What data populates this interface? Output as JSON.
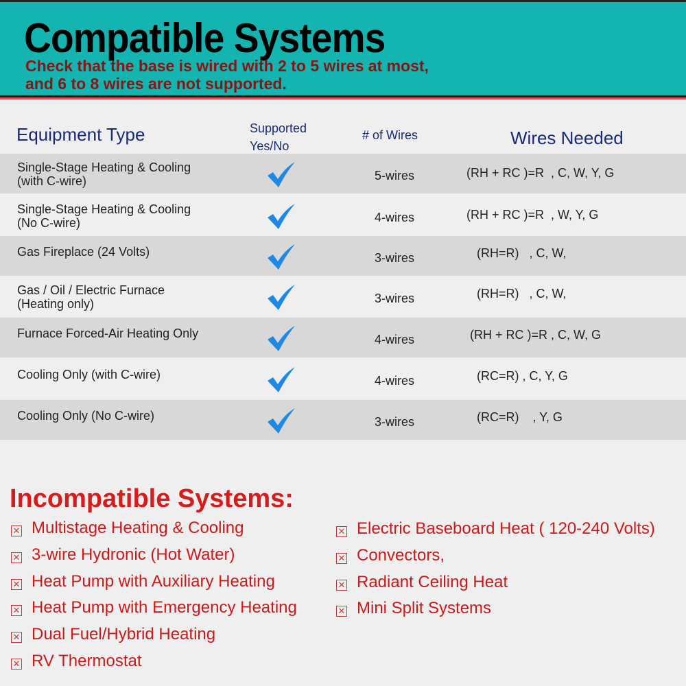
{
  "header": {
    "title": "Compatible Systems",
    "subtitle_line1": "Check that the base is wired with 2 to 5 wires at most,",
    "subtitle_line2": "and 6 to 8 wires are not supported.",
    "bg_color": "#14b5b0"
  },
  "table": {
    "headers": {
      "equipment": "Equipment Type",
      "supported_1": "Supported",
      "supported_2": "Yes/No",
      "wires": "# of Wires",
      "needed": "Wires Needed"
    },
    "rows": [
      {
        "eq1": "Single-Stage Heating & Cooling",
        "eq2": "(with C-wire)",
        "supported": "check-icon",
        "wires": "5-wires",
        "needed": "(RH + RC )=R  , C, W, Y, G"
      },
      {
        "eq1": "Single-Stage Heating & Cooling",
        "eq2": "(No C-wire)",
        "supported": "check-icon",
        "wires": "4-wires",
        "needed": "(RH + RC )=R  , W, Y, G"
      },
      {
        "eq1": "Gas Fireplace (24 Volts)",
        "eq2": "",
        "supported": "check-icon",
        "wires": "3-wires",
        "needed": "   (RH=R)   , C, W,"
      },
      {
        "eq1": "Gas / Oil / Electric Furnace",
        "eq2": "(Heating only)",
        "supported": "check-icon",
        "wires": "3-wires",
        "needed": "   (RH=R)   , C, W,"
      },
      {
        "eq1": "Furnace Forced-Air Heating Only",
        "eq2": "",
        "supported": "check-icon",
        "wires": "4-wires",
        "needed": " (RH + RC )=R , C, W, G"
      },
      {
        "eq1": "Cooling Only (with C-wire)",
        "eq2": "",
        "supported": "check-icon",
        "wires": "4-wires",
        "needed": "   (RC=R) , C, Y, G"
      },
      {
        "eq1": "Cooling Only (No C-wire)",
        "eq2": "",
        "supported": "check-icon",
        "wires": "3-wires",
        "needed": "   (RC=R)    , Y, G"
      }
    ]
  },
  "incompatible": {
    "title": "Incompatible Systems:",
    "left": [
      "Multistage Heating & Cooling",
      "3-wire Hydronic (Hot Water)",
      "Heat Pump with Auxiliary Heating",
      "Heat Pump with Emergency Heating",
      "Dual Fuel/Hybrid Heating",
      "RV Thermostat"
    ],
    "right": [
      "Electric Baseboard Heat ( 120-240 Volts)",
      "Convectors,",
      "Radiant Ceiling Heat",
      "Mini Split Systems"
    ]
  }
}
